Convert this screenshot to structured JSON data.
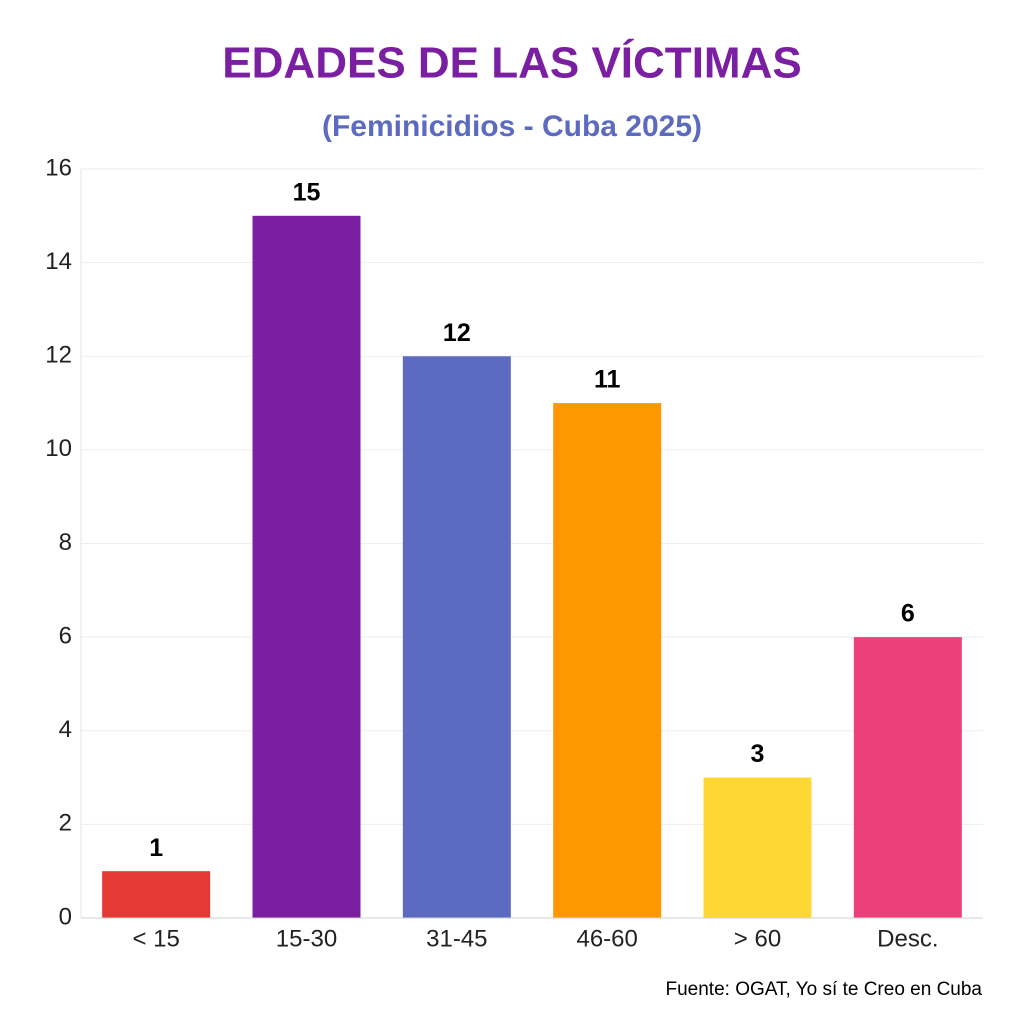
{
  "chart_data": {
    "type": "bar",
    "title": "EDADES DE LAS VÍCTIMAS",
    "subtitle": "(Feminicidios - Cuba 2025)",
    "categories": [
      "< 15",
      "15-30",
      "31-45",
      "46-60",
      "> 60",
      "Desc."
    ],
    "values": [
      1,
      15,
      12,
      11,
      3,
      6
    ],
    "colors": [
      "#e53935",
      "#7b1fa2",
      "#5c6bc0",
      "#ff9800",
      "#fdd835",
      "#ec407a"
    ],
    "ylim": [
      0,
      16
    ],
    "yticks": [
      0,
      2,
      4,
      6,
      8,
      10,
      12,
      14,
      16
    ],
    "grid": true,
    "source": "Fuente: OGAT, Yo sí te Creo en Cuba"
  }
}
